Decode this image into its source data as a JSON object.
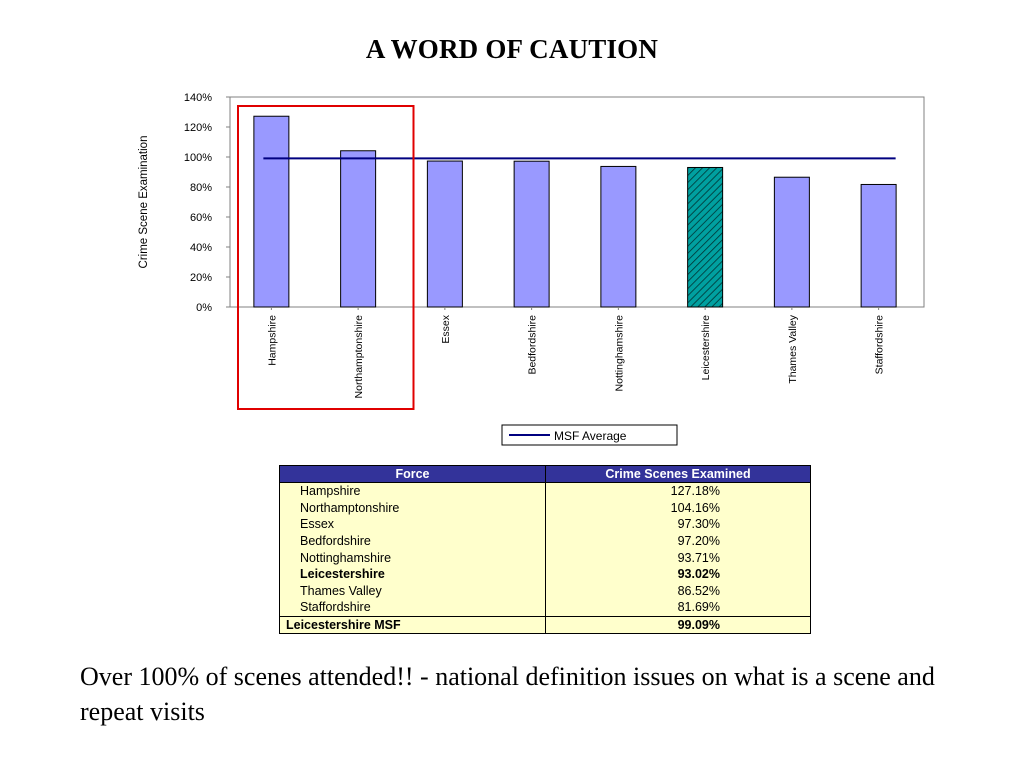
{
  "slide": {
    "title": "A WORD OF CAUTION",
    "footer": "Over 100% of scenes attended!! - national definition issues on what is a scene and repeat visits"
  },
  "chart_data": {
    "type": "bar",
    "ylabel": "Crime Scene Examination",
    "categories": [
      "Hampshire",
      "Northamptonshire",
      "Essex",
      "Bedfordshire",
      "Nottinghamshire",
      "Leicestershire",
      "Thames Valley",
      "Staffordshire"
    ],
    "values": [
      127.18,
      104.16,
      97.3,
      97.2,
      93.71,
      93.02,
      86.52,
      81.69
    ],
    "ylim": [
      0,
      140
    ],
    "yticks": [
      "0%",
      "20%",
      "40%",
      "60%",
      "80%",
      "100%",
      "120%",
      "140%"
    ],
    "reference_line": {
      "name": "MSF Average",
      "value": 99.09
    },
    "legend": {
      "label": "MSF Average",
      "position": "bottom"
    },
    "highlight_category": "Leicestershire",
    "highlight_box_categories": [
      "Hampshire",
      "Northamptonshire"
    ],
    "colors": {
      "bar": "#9999ff",
      "highlight_bar": "#00a0a0",
      "line": "#000080",
      "box": "#e00000"
    }
  },
  "table": {
    "headers": [
      "Force",
      "Crime Scenes Examined"
    ],
    "rows": [
      {
        "force": "Hampshire",
        "value": "127.18%",
        "bold": false
      },
      {
        "force": "Northamptonshire",
        "value": "104.16%",
        "bold": false
      },
      {
        "force": "Essex",
        "value": "97.30%",
        "bold": false
      },
      {
        "force": "Bedfordshire",
        "value": "97.20%",
        "bold": false
      },
      {
        "force": "Nottinghamshire",
        "value": "93.71%",
        "bold": false
      },
      {
        "force": "Leicestershire",
        "value": "93.02%",
        "bold": true
      },
      {
        "force": "Thames Valley",
        "value": "86.52%",
        "bold": false
      },
      {
        "force": "Staffordshire",
        "value": "81.69%",
        "bold": false
      }
    ],
    "total": {
      "force": "Leicestershire MSF",
      "value": "99.09%"
    }
  }
}
